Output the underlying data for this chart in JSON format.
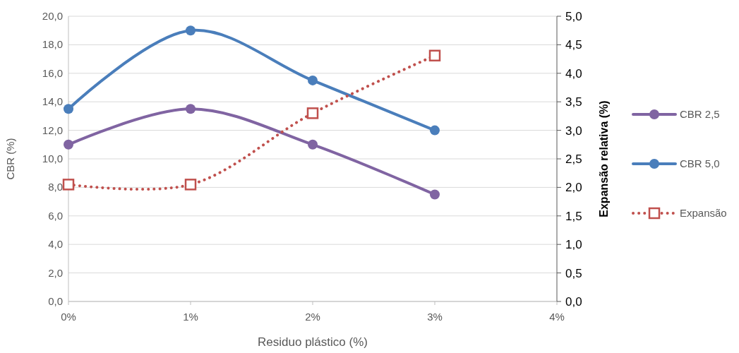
{
  "chart_data": {
    "type": "line",
    "xlabel": "Residuo plástico (%)",
    "ylabel": "CBR (%)",
    "y2label": "Expansão relativa (%)",
    "categories": [
      "0%",
      "1%",
      "2%",
      "3%",
      "4%"
    ],
    "ylim": [
      0,
      20
    ],
    "yticks": [
      {
        "value": 0,
        "label": "0,0"
      },
      {
        "value": 2,
        "label": "2,0"
      },
      {
        "value": 4,
        "label": "4,0"
      },
      {
        "value": 6,
        "label": "6,0"
      },
      {
        "value": 8,
        "label": "8,0"
      },
      {
        "value": 10,
        "label": "10,0"
      },
      {
        "value": 12,
        "label": "12,0"
      },
      {
        "value": 14,
        "label": "14,0"
      },
      {
        "value": 16,
        "label": "16,0"
      },
      {
        "value": 18,
        "label": "18,0"
      },
      {
        "value": 20,
        "label": "20,0"
      }
    ],
    "y2lim": [
      0,
      5
    ],
    "y2ticks": [
      {
        "value": 0,
        "label": "0,0"
      },
      {
        "value": 0.5,
        "label": "0,5"
      },
      {
        "value": 1,
        "label": "1,0"
      },
      {
        "value": 1.5,
        "label": "1,5"
      },
      {
        "value": 2,
        "label": "2,0"
      },
      {
        "value": 2.5,
        "label": "2,5"
      },
      {
        "value": 3,
        "label": "3,0"
      },
      {
        "value": 3.5,
        "label": "3,5"
      },
      {
        "value": 4,
        "label": "4,0"
      },
      {
        "value": 4.5,
        "label": "4,5"
      },
      {
        "value": 5,
        "label": "5,0"
      }
    ],
    "grid": "y",
    "legend": "right",
    "series": [
      {
        "name": "CBR 2,5",
        "color": "#8064a2",
        "values": [
          11,
          13.5,
          11,
          7.5,
          null
        ],
        "marker": "circle",
        "line_style": "solid"
      },
      {
        "name": "CBR 5,0",
        "color": "#4a7ebb",
        "values": [
          13.5,
          19,
          15.5,
          12,
          null
        ],
        "marker": "circle",
        "line_style": "solid"
      },
      {
        "name": "Expansão",
        "color": "#c0504d",
        "values": [
          2.05,
          2.05,
          3.3,
          4.31,
          null
        ],
        "axis": "y2",
        "marker": "square",
        "line_style": "dotted"
      }
    ]
  }
}
